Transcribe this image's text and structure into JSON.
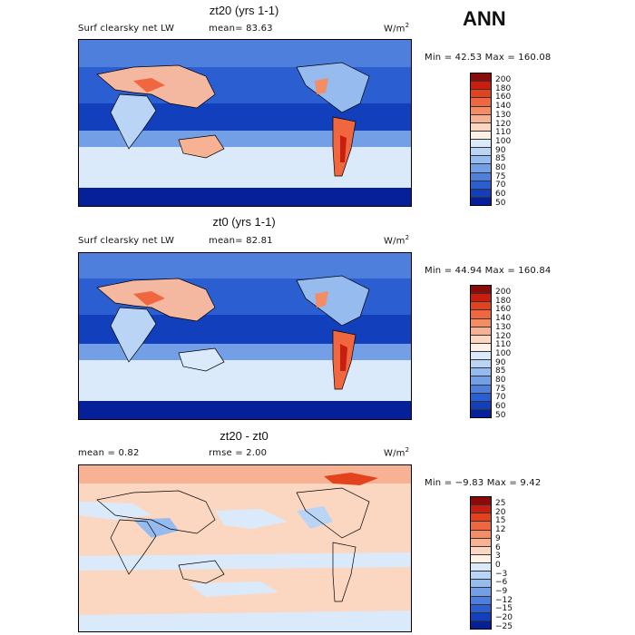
{
  "season": "ANN",
  "units": "W/m",
  "units_exp": "2",
  "palette_hi": [
    "#8c0a0a",
    "#c81e0f",
    "#e3421f",
    "#f0663f",
    "#f48c66",
    "#f7b293",
    "#fbd7c2",
    "#fdf0e6"
  ],
  "palette_lo": [
    "#dbeafb",
    "#b9d4f5",
    "#96bbef",
    "#739fe6",
    "#4e7fdc",
    "#2b5ed0",
    "#123fbb",
    "#06209a"
  ],
  "panels": [
    {
      "title": "zt20 (yrs 1-1)",
      "variable": "Surf clearsky net LW",
      "stat1": "mean=  83.63",
      "stat2": "",
      "minmax": "Min =  42.53 Max = 160.08",
      "levels": [
        "200",
        "180",
        "160",
        "140",
        "130",
        "120",
        "110",
        "100",
        "90",
        "85",
        "80",
        "75",
        "70",
        "60",
        "50"
      ],
      "map_type": "field"
    },
    {
      "title": "zt0 (yrs 1-1)",
      "variable": "Surf clearsky net LW",
      "stat1": "mean=  82.81",
      "stat2": "",
      "minmax": "Min =  44.94 Max = 160.84",
      "levels": [
        "200",
        "180",
        "160",
        "140",
        "130",
        "120",
        "110",
        "100",
        "90",
        "85",
        "80",
        "75",
        "70",
        "60",
        "50"
      ],
      "map_type": "field"
    },
    {
      "title": "zt20 - zt0",
      "variable": "mean =   0.82",
      "stat1": "rmse =   2.00",
      "stat2": "",
      "minmax": "Min = −9.83 Max =   9.42",
      "levels": [
        "25",
        "20",
        "15",
        "12",
        "9",
        "6",
        "3",
        "0",
        "−3",
        "−6",
        "−9",
        "−12",
        "−15",
        "−20",
        "−25"
      ],
      "map_type": "diff"
    }
  ]
}
